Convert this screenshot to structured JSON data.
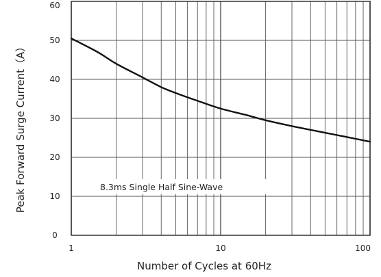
{
  "chart_data": {
    "type": "line",
    "xlabel": "Number of Cycles at 60Hz",
    "ylabel": "Peak Forward Surge Current（A）",
    "xscale": "log",
    "xlim": [
      1,
      100
    ],
    "ylim": [
      0,
      60
    ],
    "x_ticks": [
      1,
      10,
      100
    ],
    "x_tick_labels": [
      "1",
      "10",
      "100"
    ],
    "y_ticks": [
      0,
      10,
      20,
      30,
      40,
      50,
      60
    ],
    "y_tick_labels": [
      "0",
      "10",
      "20",
      "30",
      "40",
      "50",
      "60"
    ],
    "grid": true,
    "annotation": "8.3ms Single Half Sine-Wave",
    "series": [
      {
        "x": [
          1,
          1.5,
          2,
          3,
          4,
          5,
          7,
          10,
          15,
          20,
          30,
          50,
          70,
          100
        ],
        "values": [
          50.5,
          47,
          44,
          40.5,
          38,
          36.5,
          34.5,
          32.5,
          30.8,
          29.5,
          28,
          26.3,
          25.2,
          24
        ]
      }
    ],
    "colors": {
      "line": "#111111",
      "grid": "#555555",
      "text": "#222222"
    }
  }
}
